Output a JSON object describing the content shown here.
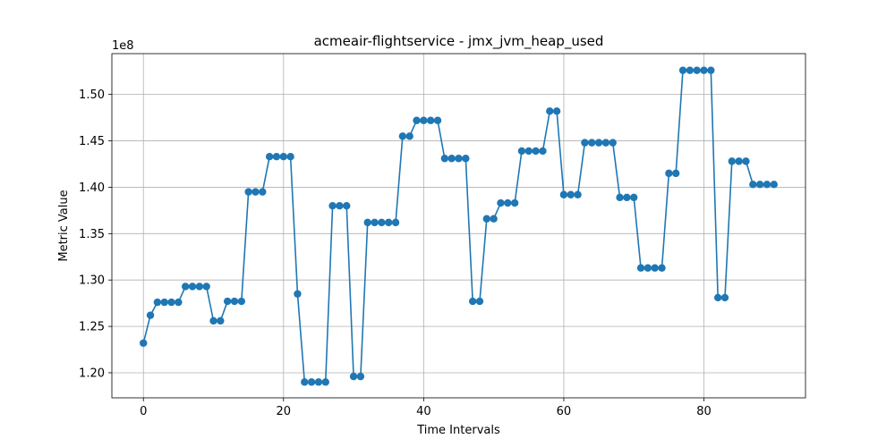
{
  "chart_data": {
    "type": "line",
    "title": "acmeair-flightservice - jmx_jvm_heap_used",
    "xlabel": "Time Intervals",
    "ylabel": "Metric Value",
    "y_offset_label": "1e8",
    "xlim": [
      -4.5,
      94.5
    ],
    "ylim": [
      1.173,
      1.544
    ],
    "x_ticks": [
      0,
      20,
      40,
      60,
      80
    ],
    "x_tick_labels": [
      "0",
      "20",
      "40",
      "60",
      "80"
    ],
    "y_ticks": [
      1.2,
      1.25,
      1.3,
      1.35,
      1.4,
      1.45,
      1.5
    ],
    "y_tick_labels": [
      "1.20",
      "1.25",
      "1.30",
      "1.35",
      "1.40",
      "1.45",
      "1.50"
    ],
    "grid": true,
    "series_color": "#1f77b4",
    "x": [
      0,
      1,
      2,
      3,
      4,
      5,
      6,
      7,
      8,
      9,
      10,
      11,
      12,
      13,
      14,
      15,
      16,
      17,
      18,
      19,
      20,
      21,
      22,
      23,
      24,
      25,
      26,
      27,
      28,
      29,
      30,
      31,
      32,
      33,
      34,
      35,
      36,
      37,
      38,
      39,
      40,
      41,
      42,
      43,
      44,
      45,
      46,
      47,
      48,
      49,
      50,
      51,
      52,
      53,
      54,
      55,
      56,
      57,
      58,
      59,
      60,
      61,
      62,
      63,
      64,
      65,
      66,
      67,
      68,
      69,
      70,
      71,
      72,
      73,
      74,
      75,
      76,
      77,
      78,
      79,
      80,
      81,
      82,
      83,
      84,
      85,
      86,
      87,
      88,
      89,
      90
    ],
    "values": [
      1.232,
      1.262,
      1.276,
      1.276,
      1.276,
      1.276,
      1.293,
      1.293,
      1.293,
      1.293,
      1.256,
      1.256,
      1.277,
      1.277,
      1.277,
      1.395,
      1.395,
      1.395,
      1.433,
      1.433,
      1.433,
      1.433,
      1.285,
      1.19,
      1.19,
      1.19,
      1.19,
      1.38,
      1.38,
      1.38,
      1.196,
      1.196,
      1.362,
      1.362,
      1.362,
      1.362,
      1.362,
      1.455,
      1.455,
      1.472,
      1.472,
      1.472,
      1.472,
      1.431,
      1.431,
      1.431,
      1.431,
      1.277,
      1.277,
      1.366,
      1.366,
      1.383,
      1.383,
      1.383,
      1.439,
      1.439,
      1.439,
      1.439,
      1.482,
      1.482,
      1.392,
      1.392,
      1.392,
      1.448,
      1.448,
      1.448,
      1.448,
      1.448,
      1.389,
      1.389,
      1.389,
      1.313,
      1.313,
      1.313,
      1.313,
      1.415,
      1.415,
      1.526,
      1.526,
      1.526,
      1.526,
      1.526,
      1.281,
      1.281,
      1.428,
      1.428,
      1.428,
      1.403,
      1.403,
      1.403,
      1.403
    ]
  }
}
